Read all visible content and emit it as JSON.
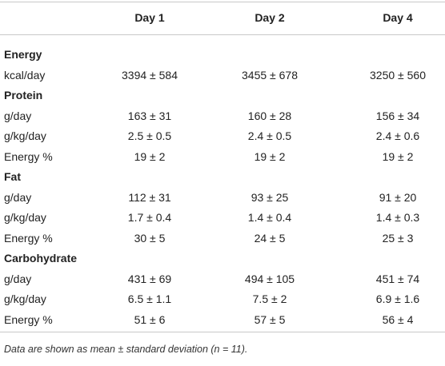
{
  "table": {
    "columns": [
      "Day 1",
      "Day 2",
      "Day 4"
    ],
    "sections": [
      {
        "title": "Energy",
        "rows": [
          {
            "label": "kcal/day",
            "cells": [
              "3394 ± 584",
              "3455 ± 678",
              "3250 ± 560"
            ]
          }
        ]
      },
      {
        "title": "Protein",
        "rows": [
          {
            "label": "g/day",
            "cells": [
              "163 ± 31",
              "160 ± 28",
              "156 ± 34"
            ]
          },
          {
            "label": "g/kg/day",
            "cells": [
              "2.5 ± 0.5",
              "2.4 ± 0.5",
              "2.4 ± 0.6"
            ]
          },
          {
            "label": "Energy %",
            "cells": [
              "19 ± 2",
              "19 ± 2",
              "19 ± 2"
            ]
          }
        ]
      },
      {
        "title": "Fat",
        "rows": [
          {
            "label": "g/day",
            "cells": [
              "112 ± 31",
              "93 ± 25",
              "91 ± 20"
            ]
          },
          {
            "label": "g/kg/day",
            "cells": [
              "1.7 ± 0.4",
              "1.4 ± 0.4",
              "1.4 ± 0.3"
            ]
          },
          {
            "label": "Energy %",
            "cells": [
              "30 ± 5",
              "24 ± 5",
              "25 ± 3"
            ]
          }
        ]
      },
      {
        "title": "Carbohydrate",
        "rows": [
          {
            "label": "g/day",
            "cells": [
              "431 ± 69",
              "494 ± 105",
              "451 ± 74"
            ]
          },
          {
            "label": "g/kg/day",
            "cells": [
              "6.5 ± 1.1",
              "7.5 ± 2",
              "6.9 ± 1.6"
            ]
          },
          {
            "label": "Energy %",
            "cells": [
              "51 ± 6",
              "57 ± 5",
              "56 ± 4"
            ]
          }
        ]
      }
    ],
    "footnote": "Data are shown as mean ± standard deviation (n = 11)."
  }
}
